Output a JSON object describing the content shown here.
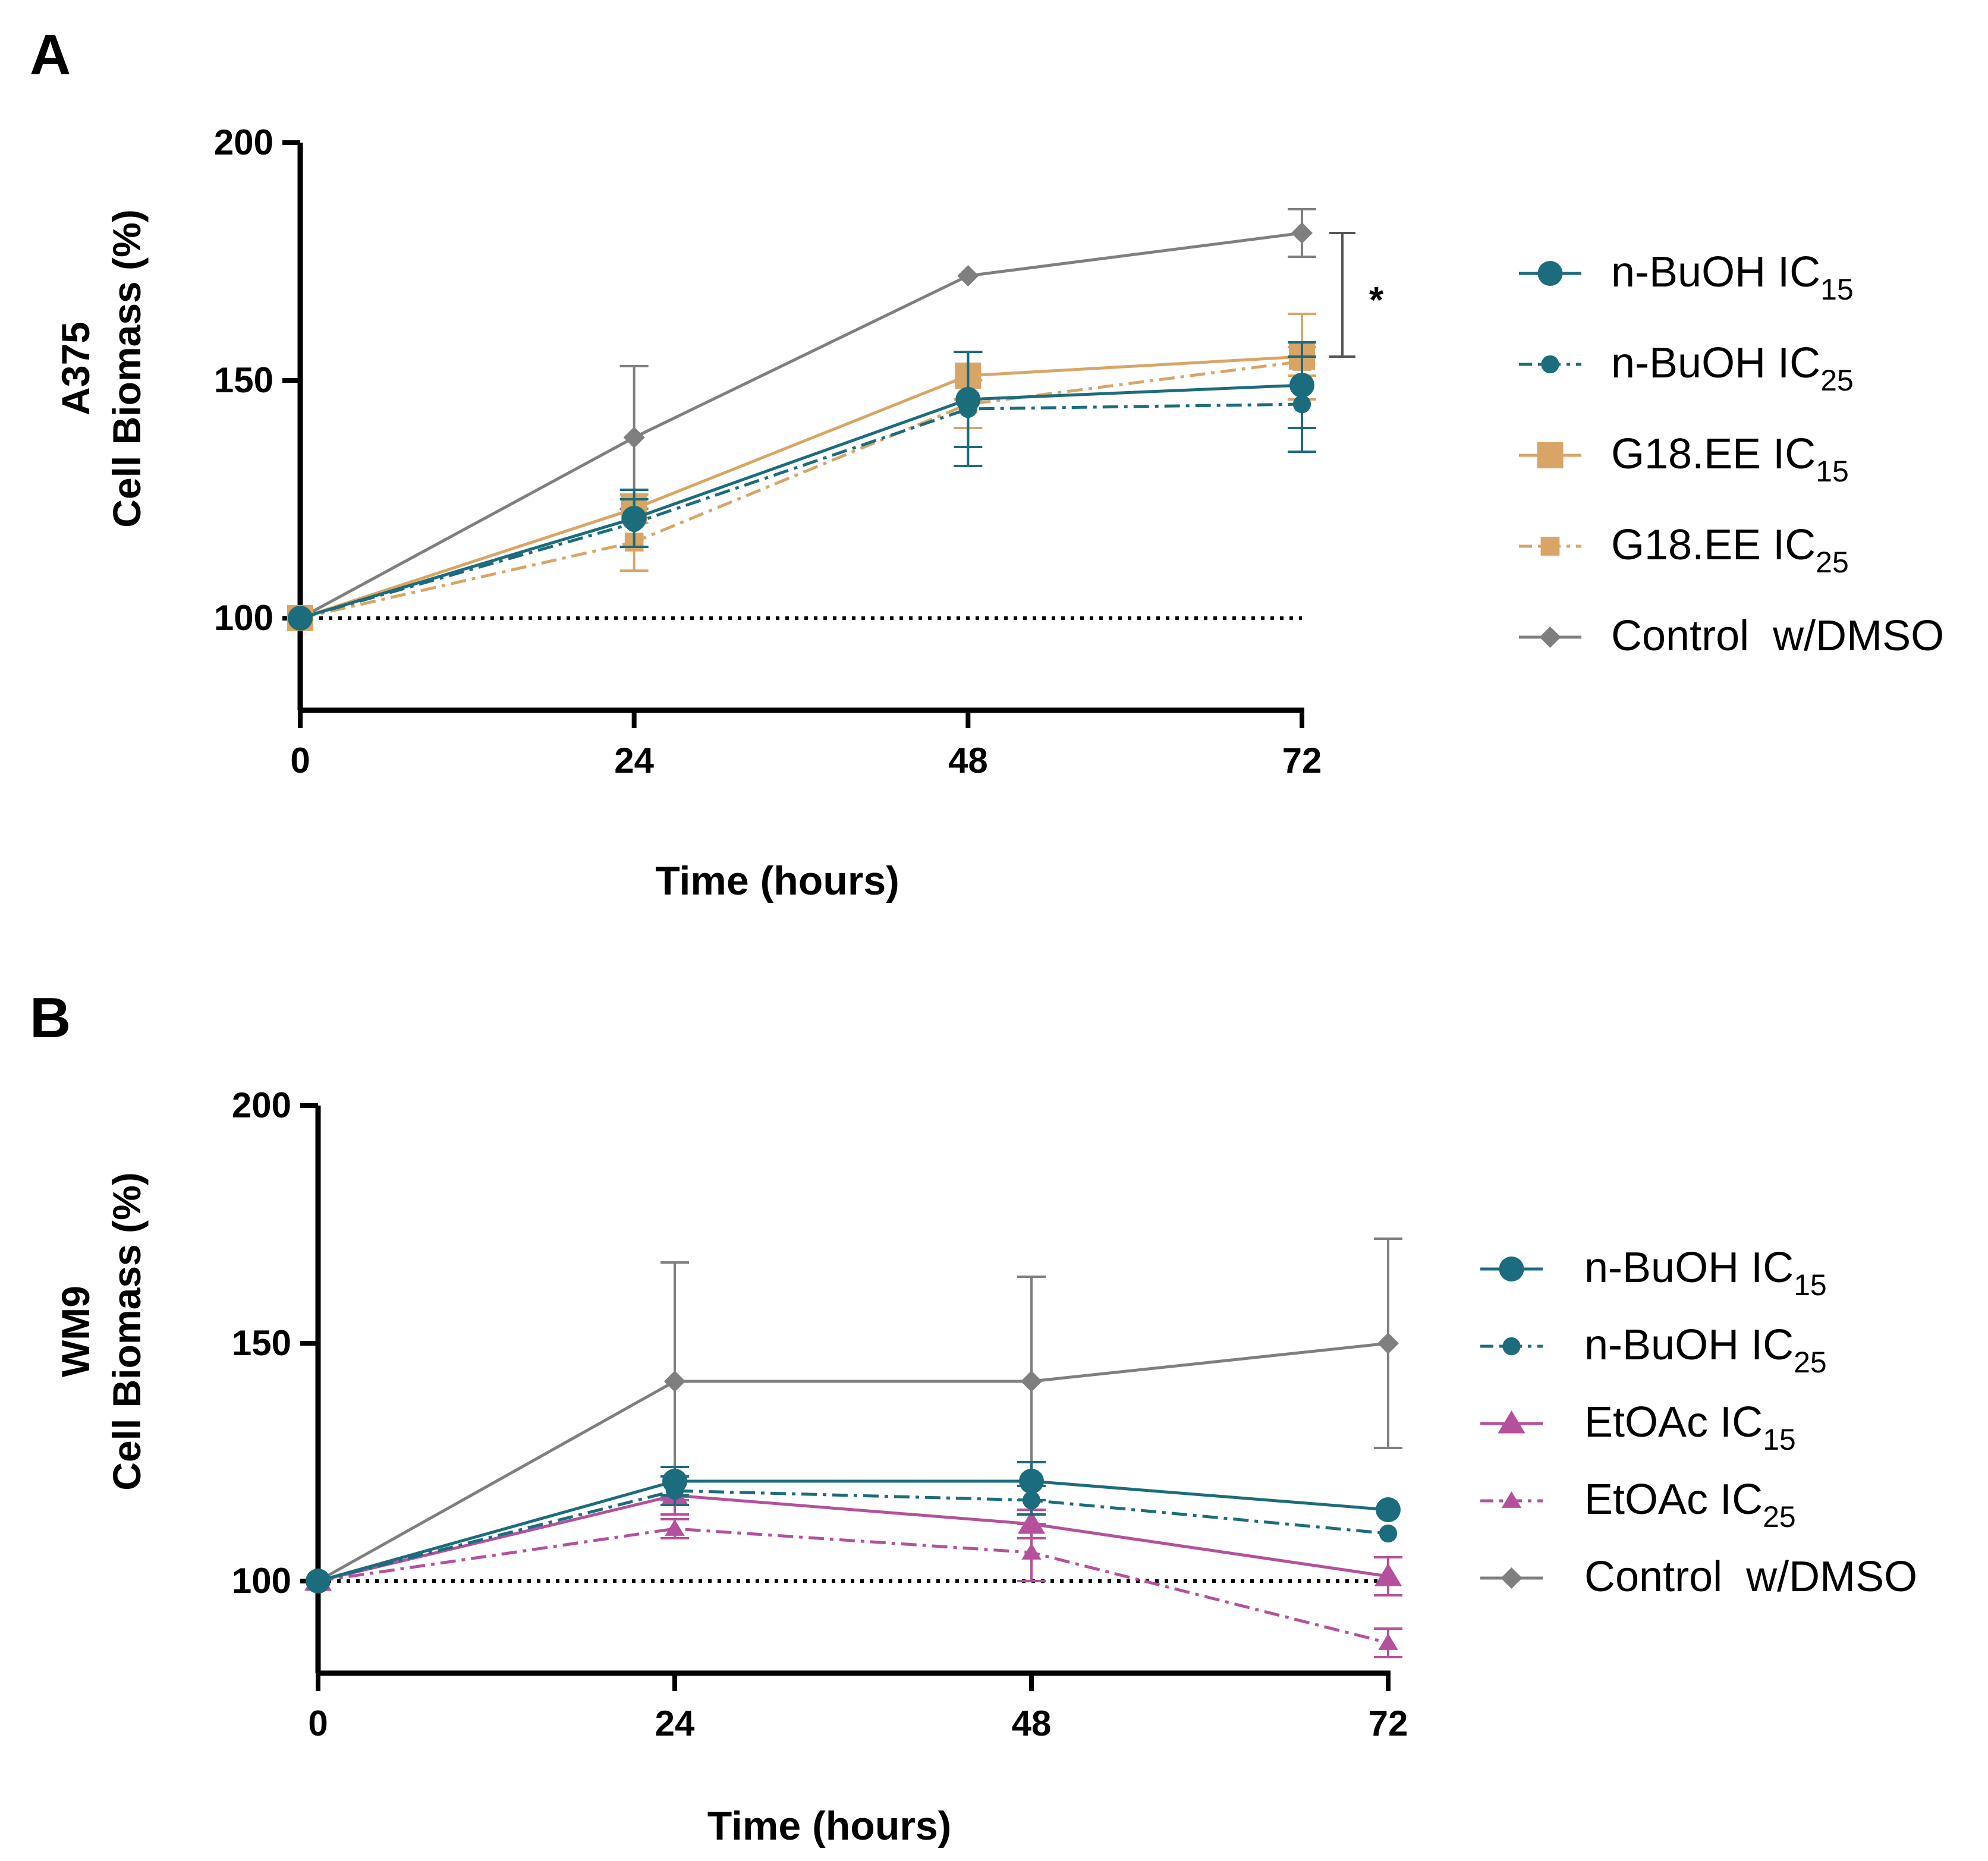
{
  "chart_data": [
    {
      "panel_label": "A",
      "type": "line",
      "cell_line": "A375",
      "ylabel": "Cell Biomass (%)",
      "xlabel": "Time (hours)",
      "x": [
        0,
        24,
        48,
        72
      ],
      "xticks": [
        "0",
        "24",
        "48",
        "72"
      ],
      "yticks": [
        "100",
        "150",
        "200"
      ],
      "ylim": [
        80,
        200
      ],
      "xlim": [
        0,
        72
      ],
      "baseline": 100,
      "significance": "*",
      "legend_position": "right",
      "series": [
        {
          "name": "n-BuOH",
          "sub": "15",
          "color": "#1b6c7c",
          "marker": "circle",
          "style": "solid",
          "values": [
            100,
            121,
            146,
            149
          ],
          "err": [
            0,
            6,
            10,
            9
          ]
        },
        {
          "name": "n-BuOH",
          "sub": "25",
          "color": "#1b6c7c",
          "marker": "circle",
          "style": "dashdot",
          "values": [
            100,
            120,
            144,
            145
          ],
          "err": [
            0,
            5,
            12,
            10
          ]
        },
        {
          "name": "G18.EE",
          "sub": "15",
          "color": "#d9a566",
          "marker": "square",
          "style": "solid",
          "values": [
            100,
            123,
            151,
            155
          ],
          "err": [
            0,
            3,
            5,
            9
          ]
        },
        {
          "name": "G18.EE",
          "sub": "25",
          "color": "#d9a566",
          "marker": "square",
          "style": "dashdot",
          "values": [
            100,
            116,
            145,
            154
          ],
          "err": [
            0,
            6,
            5,
            3
          ]
        },
        {
          "name": "Control  w/DMSO",
          "sub": "",
          "color": "#7f7f7f",
          "marker": "diamond",
          "style": "solid",
          "values": [
            100,
            138,
            172,
            181
          ],
          "err": [
            0,
            15,
            0,
            5
          ]
        }
      ]
    },
    {
      "panel_label": "B",
      "type": "line",
      "cell_line": "WM9",
      "ylabel": "Cell Biomass (%)",
      "xlabel": "Time (hours)",
      "x": [
        0,
        24,
        48,
        72
      ],
      "xticks": [
        "0",
        "24",
        "48",
        "72"
      ],
      "yticks": [
        "100",
        "150",
        "200"
      ],
      "ylim": [
        80,
        200
      ],
      "xlim": [
        0,
        72
      ],
      "baseline": 100,
      "legend_position": "right",
      "series": [
        {
          "name": "n-BuOH",
          "sub": "15",
          "color": "#1b6c7c",
          "marker": "circle",
          "style": "solid",
          "values": [
            100,
            121,
            121,
            115
          ],
          "err": [
            0,
            3,
            4,
            0
          ]
        },
        {
          "name": "n-BuOH",
          "sub": "25",
          "color": "#1b6c7c",
          "marker": "circle",
          "style": "dashdot",
          "values": [
            100,
            119,
            117,
            110
          ],
          "err": [
            0,
            3,
            3,
            0
          ]
        },
        {
          "name": "EtOAc",
          "sub": "15",
          "color": "#b5509c",
          "marker": "triangle",
          "style": "solid",
          "values": [
            100,
            118,
            112,
            101
          ],
          "err": [
            0,
            4,
            3,
            4
          ]
        },
        {
          "name": "EtOAc",
          "sub": "25",
          "color": "#b5509c",
          "marker": "triangle",
          "style": "dashdot",
          "values": [
            100,
            111,
            106,
            87
          ],
          "err": [
            0,
            2,
            6,
            3
          ]
        },
        {
          "name": "Control  w/DMSO",
          "sub": "",
          "color": "#7f7f7f",
          "marker": "diamond",
          "style": "solid",
          "values": [
            100,
            142,
            142,
            150
          ],
          "err": [
            0,
            25,
            22,
            22
          ]
        }
      ]
    }
  ]
}
